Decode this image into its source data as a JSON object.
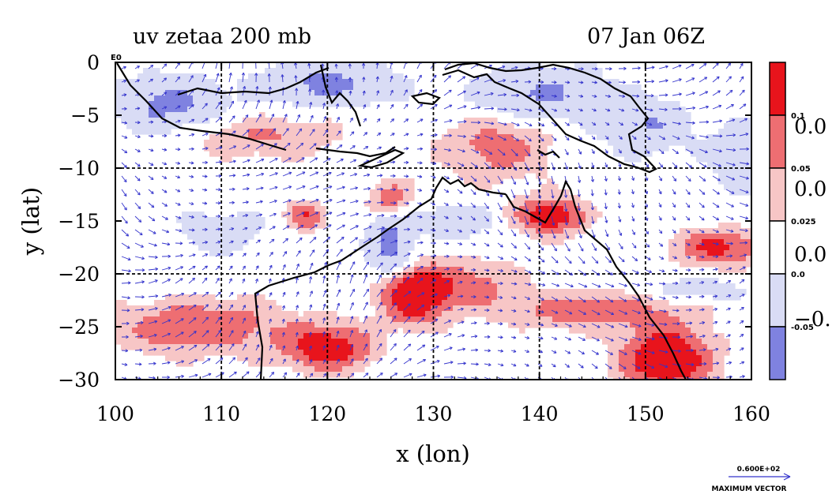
{
  "chart_data": {
    "type": "heatmap",
    "title_left": "uv zetaa 200 mb",
    "title_right": "07 Jan 06Z",
    "xlabel": "x (lon)",
    "ylabel": "y (lat)",
    "xlim": [
      100,
      160
    ],
    "ylim": [
      -30,
      0
    ],
    "x_ticks": [
      "100",
      "110",
      "120",
      "130",
      "140",
      "150",
      "160"
    ],
    "y_ticks": [
      "0",
      "−5",
      "−10",
      "−15",
      "−20",
      "−25",
      "−30"
    ],
    "corner_label": "E0",
    "grid": true,
    "grid_lines_x": [
      100,
      110,
      120,
      130,
      140,
      150,
      160
    ],
    "grid_lines_y": [
      0,
      -10,
      -20,
      -30
    ],
    "fill_colors": [
      "#7f82e0",
      "#d9dcf5",
      "#ffffff",
      "#f7c6c6",
      "#ee6e72",
      "#e8141c"
    ],
    "levels_small": [
      "0.1",
      "0.05",
      "0.025",
      "0.0",
      "-0.05"
    ],
    "levels_big": [
      "0.0",
      "0.0",
      "0.0",
      "−0."
    ],
    "vector_color": "#3333cc",
    "contour_color": "#e8141c",
    "coast_color": "#000000",
    "max_vector": {
      "value": "0.600E+02",
      "label": "MAXIMUM VECTOR"
    }
  }
}
